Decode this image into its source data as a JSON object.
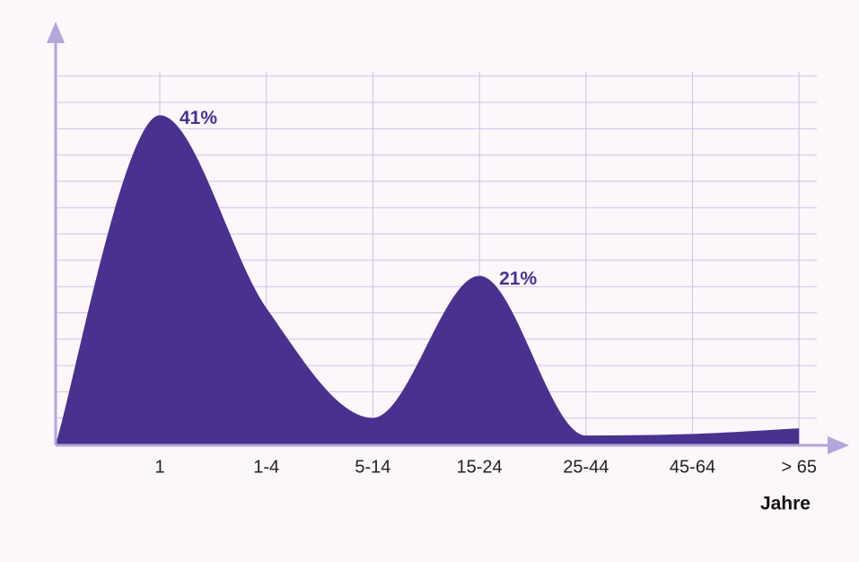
{
  "chart_data": {
    "type": "area",
    "categories": [
      "1",
      "1-4",
      "5-14",
      "15-24",
      "25-44",
      "45-64",
      "> 65"
    ],
    "values": [
      41,
      17,
      3.3,
      21,
      1.1,
      1.3,
      2
    ],
    "value_labels": [
      "41%",
      null,
      null,
      "21%",
      null,
      null,
      null
    ],
    "color": "#48318f",
    "x_label": "Jahre",
    "ylim": [
      0,
      52
    ],
    "grid": true
  }
}
